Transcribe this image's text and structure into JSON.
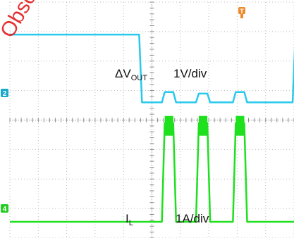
{
  "chart_data": {
    "type": "line",
    "title": "",
    "grid": true,
    "grid_divisions": {
      "x": 10,
      "y": 8
    },
    "colors": {
      "vout": "#29c9ee",
      "il": "#1ee01e",
      "grid": "#bcbcbc",
      "channel2": "#19a9c9",
      "channel4": "#22cc22",
      "trigger": "#ee8a2a",
      "watermark": "#e01010"
    },
    "annotations": {
      "vout_symbol": "ΔV",
      "vout_subscript": "OUT",
      "vout_scale": "1V/div",
      "il_symbol": "I",
      "il_subscript": "L",
      "il_scale": "1A/div"
    },
    "markers": {
      "channel2": "2",
      "channel4": "4",
      "trigger": "T"
    },
    "watermark": "Obsolete",
    "x": [
      0,
      8,
      9.2,
      10.8,
      11.6,
      13.2,
      14.0,
      15.8,
      16.6,
      20
    ],
    "series": [
      {
        "name": "VOUT",
        "unit_div": "1V/div",
        "zero_div": 4.6,
        "levels": [
          6.9,
          6.9,
          4.6,
          4.95,
          4.6,
          4.9,
          4.6,
          4.95,
          4.6,
          6.9
        ]
      },
      {
        "name": "IL",
        "unit_div": "1A/div",
        "zero_div": 0.55,
        "levels": [
          0.55,
          0.55,
          0.55,
          3.9,
          0.55,
          3.9,
          0.55,
          3.9,
          0.55,
          0.55
        ]
      }
    ]
  }
}
